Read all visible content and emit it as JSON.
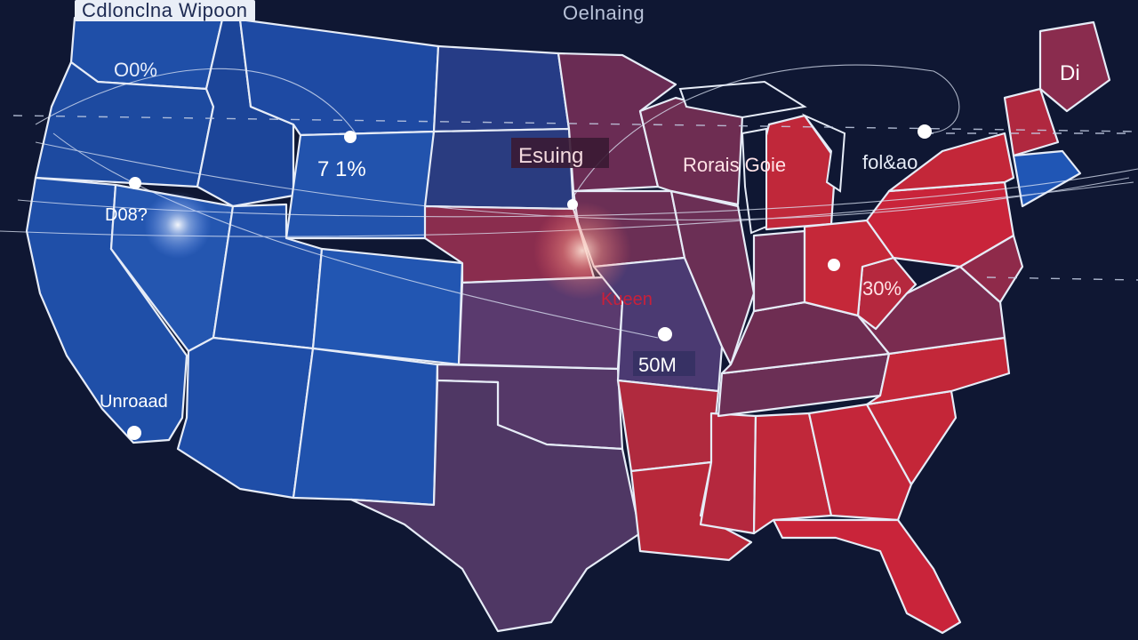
{
  "header": {
    "left_title": "Cdlonclna Wipoon",
    "center_title": "Oelnaing"
  },
  "colors": {
    "background": "#0f1733",
    "blue": "#1f4fa8",
    "blue_dark": "#1c3d8a",
    "purple": "#5a3a6e",
    "red": "#b8283a",
    "red_bright": "#c9243a",
    "border": "#e6ecf7"
  },
  "labels": {
    "pacific_nw": "O0%",
    "mountain": "7 1%",
    "sierra": "D08?",
    "southwest": "Unroaad",
    "plains": "Esuing",
    "great_lakes": "Rorais Goie",
    "northeast": "fol&ao",
    "new_england": "Di",
    "ohio_valley": "30%",
    "kansas": "Kueen",
    "missouri": "50M"
  }
}
